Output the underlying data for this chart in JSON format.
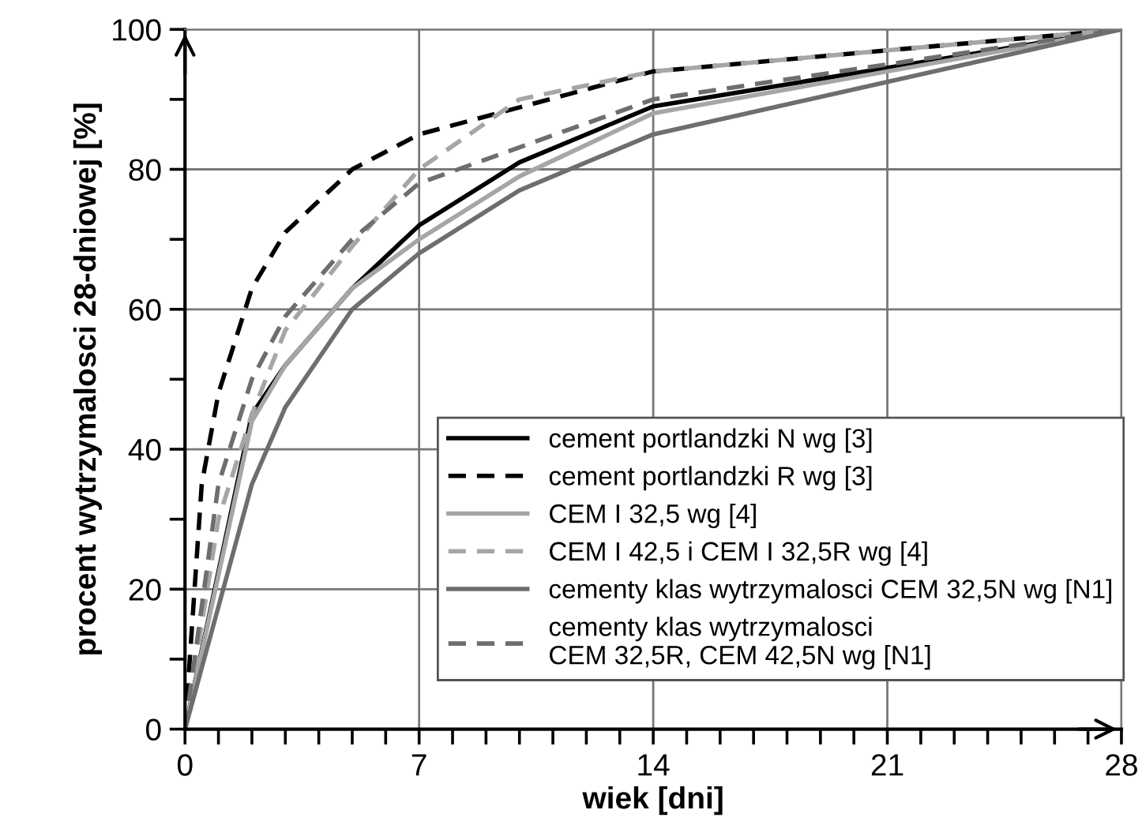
{
  "chart_data": {
    "type": "line",
    "xlabel": "wiek [dni]",
    "ylabel": "procent wytrzymalosci 28-dniowej [%]",
    "xlim": [
      0,
      28
    ],
    "xticks": [
      0,
      {
        "value": 1,
        "label": null
      },
      {
        "value": 2,
        "label": null
      },
      {
        "value": 3,
        "label": null
      },
      {
        "value": 4,
        "label": null
      },
      {
        "value": 5,
        "label": null
      },
      {
        "value": 6,
        "label": null
      },
      7,
      {
        "value": 8,
        "label": null
      },
      {
        "value": 9,
        "label": null
      },
      {
        "value": 10,
        "label": null
      },
      {
        "value": 11,
        "label": null
      },
      {
        "value": 12,
        "label": null
      },
      {
        "value": 13,
        "label": null
      },
      14,
      {
        "value": 15,
        "label": null
      },
      {
        "value": 16,
        "label": null
      },
      {
        "value": 17,
        "label": null
      },
      {
        "value": 18,
        "label": null
      },
      {
        "value": 19,
        "label": null
      },
      {
        "value": 20,
        "label": null
      },
      21,
      {
        "value": 22,
        "label": null
      },
      {
        "value": 23,
        "label": null
      },
      {
        "value": 24,
        "label": null
      },
      {
        "value": 25,
        "label": null
      },
      {
        "value": 26,
        "label": null
      },
      {
        "value": 27,
        "label": null
      },
      28
    ],
    "ylim": [
      0,
      100
    ],
    "yticks": [
      0,
      {
        "value": 10,
        "label": null
      },
      20,
      {
        "value": 30,
        "label": null
      },
      40,
      {
        "value": 50,
        "label": null
      },
      60,
      {
        "value": 70,
        "label": null
      },
      80,
      {
        "value": 90,
        "label": null
      },
      100
    ],
    "grid": true,
    "legend": "bottom right",
    "series": [
      {
        "name": "cement portlandzki N wg [3]",
        "color": "#000000",
        "line_style": "solid",
        "x": [
          0,
          2,
          3,
          5,
          7,
          10,
          14,
          28
        ],
        "values": [
          0,
          45,
          52,
          63,
          72,
          81,
          89,
          100
        ]
      },
      {
        "name": "cement portlandzki R wg [3]",
        "color": "#000000",
        "line_style": "dashed",
        "x": [
          0,
          0.5,
          1,
          2,
          3,
          5,
          7,
          14,
          28
        ],
        "values": [
          0,
          35,
          48,
          63,
          71,
          80,
          85,
          94,
          100
        ]
      },
      {
        "name": "CEM I 32,5 wg [4]",
        "color": "#a6a6a6",
        "line_style": "solid",
        "x": [
          0,
          2,
          3,
          5,
          7,
          10,
          14,
          28
        ],
        "values": [
          0,
          44,
          52,
          63,
          70,
          79,
          88,
          100
        ]
      },
      {
        "name": "CEM I 42,5 i CEM I 32,5R wg [4]",
        "color": "#a6a6a6",
        "line_style": "dashed",
        "x": [
          0,
          1,
          2,
          3,
          5,
          7,
          10,
          14,
          28
        ],
        "values": [
          0,
          30,
          45,
          57,
          69,
          80,
          90,
          94,
          100
        ]
      },
      {
        "name": "cementy klas wytrzymalosci CEM 32,5N wg [N1]",
        "color": "#6e6e6e",
        "line_style": "solid",
        "x": [
          0,
          2,
          3,
          5,
          7,
          10,
          14,
          28
        ],
        "values": [
          0,
          35,
          46,
          60,
          68,
          77,
          85,
          100
        ]
      },
      {
        "name": "cementy klas wytrzymalosci\nCEM 32,5R, CEM 42,5N wg [N1]",
        "color": "#6e6e6e",
        "line_style": "dashed",
        "x": [
          0,
          1,
          2,
          3,
          5,
          7,
          14,
          28
        ],
        "values": [
          0,
          35,
          50,
          59,
          70,
          78,
          90,
          100
        ]
      }
    ]
  }
}
